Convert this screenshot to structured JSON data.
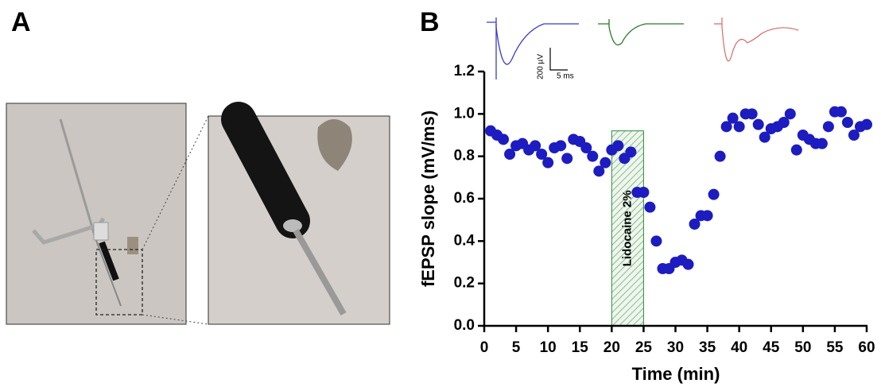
{
  "panel_labels": [
    "A",
    "B"
  ],
  "chart_data": {
    "type": "scatter",
    "y_label": "fEPSP slope (mV/ms)",
    "x_label": "Time (min)",
    "color": "#1c1cc0",
    "x": [
      1,
      2,
      3,
      4,
      5,
      6,
      7,
      8,
      9,
      10,
      11,
      12,
      13,
      14,
      15,
      16,
      17,
      18,
      19,
      20,
      21,
      22,
      23,
      24,
      25,
      26,
      27,
      28,
      29,
      30,
      31,
      32,
      33,
      34,
      35,
      36,
      37,
      38,
      39,
      40,
      41,
      42,
      43,
      44,
      45,
      46,
      47,
      48,
      49,
      50,
      51,
      52,
      53,
      54,
      55,
      56,
      57,
      58,
      59,
      60
    ],
    "values": [
      0.92,
      0.9,
      0.88,
      0.81,
      0.85,
      0.86,
      0.83,
      0.85,
      0.81,
      0.77,
      0.84,
      0.85,
      0.79,
      0.88,
      0.87,
      0.84,
      0.8,
      0.73,
      0.77,
      0.83,
      0.85,
      0.79,
      0.82,
      0.63,
      0.63,
      0.56,
      0.4,
      0.27,
      0.27,
      0.3,
      0.31,
      0.29,
      0.48,
      0.52,
      0.52,
      0.62,
      0.8,
      0.94,
      0.98,
      0.94,
      1.0,
      1.0,
      0.95,
      0.89,
      0.93,
      0.94,
      0.96,
      1.0,
      0.83,
      0.9,
      0.88,
      0.86,
      0.86,
      0.94,
      1.01,
      1.01,
      0.96,
      0.9,
      0.94,
      0.95
    ],
    "xlim": [
      0,
      60
    ],
    "ylim": [
      0,
      1.2
    ],
    "xticks": [
      0,
      5,
      10,
      15,
      20,
      25,
      30,
      35,
      40,
      45,
      50,
      55,
      60
    ],
    "yticks": [
      {
        "value": 0,
        "label": "0.0"
      },
      0.2,
      0.4,
      0.6,
      0.8,
      {
        "value": 1,
        "label": "1.0"
      },
      1.2
    ],
    "shaded_region": {
      "x": [
        20,
        25
      ],
      "ymax": 0.92,
      "label": "Lidocaine 2%",
      "color": "#2e8b3a"
    },
    "scale_bar": {
      "y_label": "200 µV",
      "x_label": "5 ms"
    }
  }
}
